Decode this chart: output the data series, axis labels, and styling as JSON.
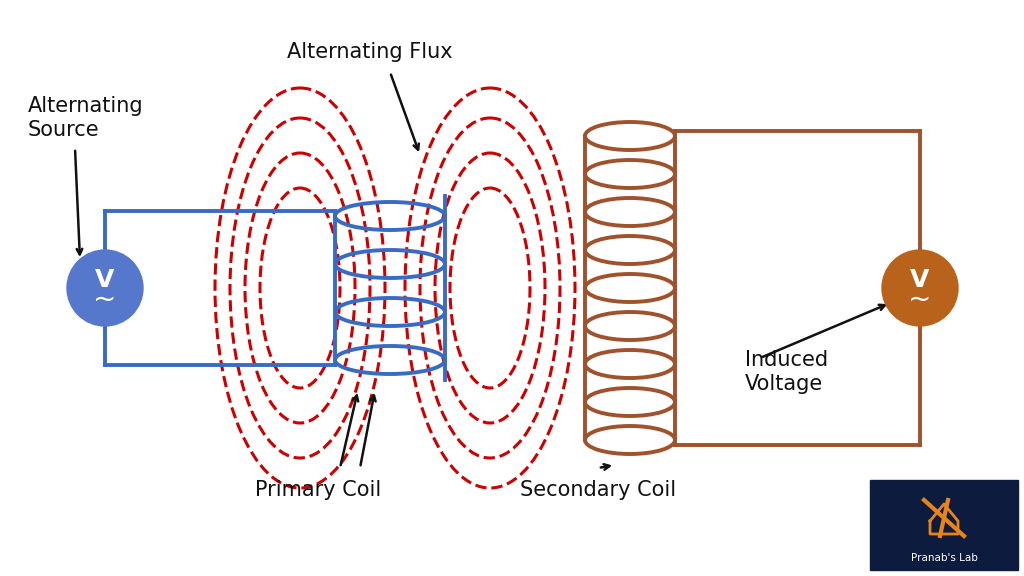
{
  "bg_color": "#ffffff",
  "primary_coil_color": "#3a6bc4",
  "secondary_coil_color": "#a0522d",
  "flux_color": "#cc0000",
  "wire_color_primary": "#3a6bc4",
  "wire_color_secondary": "#a0522d",
  "source_circle_color": "#5577cc",
  "load_circle_color": "#b8621b",
  "text_color": "#111111",
  "labels": {
    "alternating_source": "Alternating\nSource",
    "alternating_flux": "Alternating Flux",
    "primary_coil": "Primary Coil",
    "secondary_coil": "Secondary Coil",
    "induced_voltage": "Induced\nVoltage"
  },
  "logo_bg": "#0d1b3e"
}
